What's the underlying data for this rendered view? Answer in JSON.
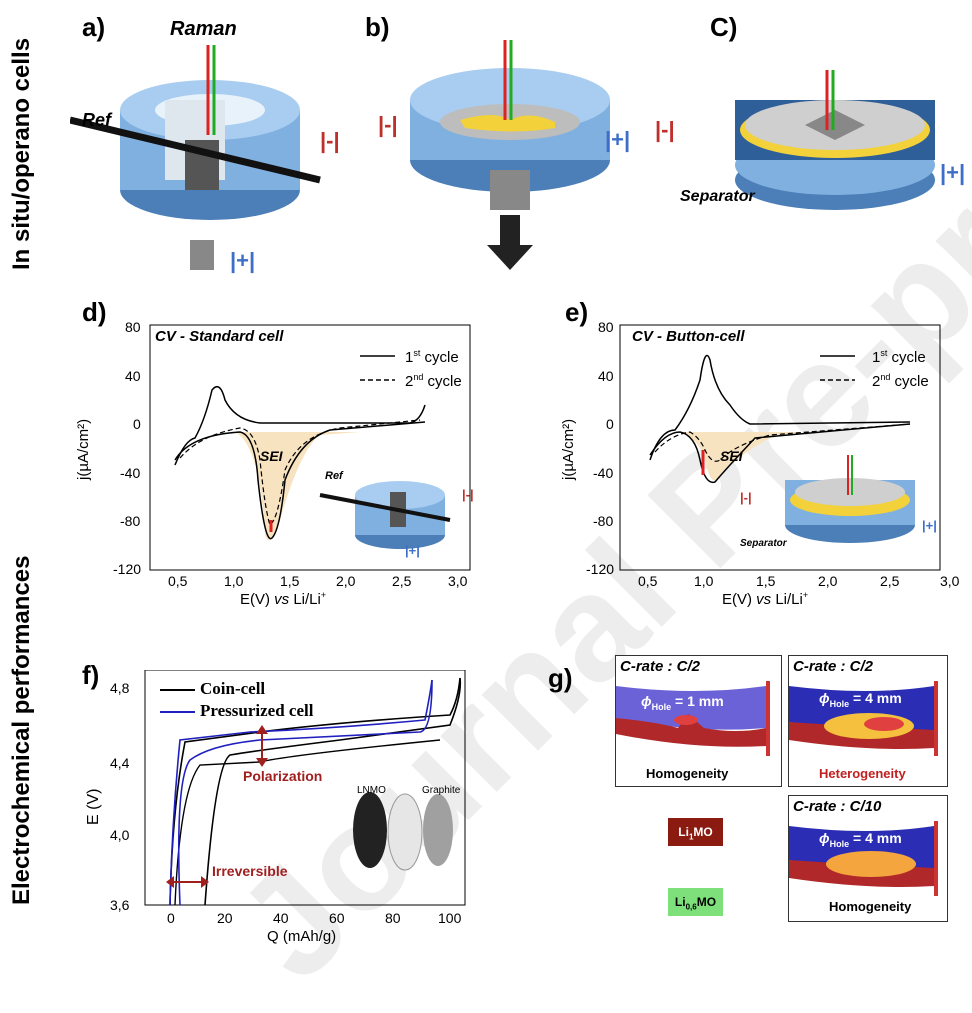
{
  "row_labels": {
    "top": "In situ/operano cells",
    "bottom": "Electrochemical performances"
  },
  "panels": {
    "a": {
      "label": "a)",
      "raman": "Raman",
      "ref": "Ref",
      "neg": "|-|",
      "pos": "|+|"
    },
    "b": {
      "label": "b)",
      "neg": "|-|",
      "pos": "|+|"
    },
    "c": {
      "label": "C)",
      "neg": "|-|",
      "pos": "|+|",
      "separator": "Separator"
    },
    "d": {
      "label": "d)",
      "title": "CV - Standard cell",
      "legend1": "1st cycle",
      "legend2": "2nd cycle",
      "legend1_base": "1",
      "legend1_sup": "st",
      "legend1_rest": " cycle",
      "legend2_base": "2",
      "legend2_sup": "nd",
      "legend2_rest": " cycle",
      "sei": "SEI",
      "inset_ref": "Ref",
      "inset_neg": "|-|",
      "inset_pos": "|+|"
    },
    "e": {
      "label": "e)",
      "title": "CV - Button-cell",
      "sei": "SEI",
      "inset_neg": "|-|",
      "inset_pos": "|+|",
      "inset_separator": "Separator"
    },
    "f": {
      "label": "f)",
      "legend1": "Coin-cell",
      "legend2": "Pressurized cell",
      "polarization": "Polarization",
      "irreversible": "Irreversible",
      "lnmo": "LNMO",
      "graphite": "Graphite",
      "xlabel": "Q (mAh/g)",
      "ylabel": "E (V)"
    },
    "g": {
      "label": "g)",
      "box1": {
        "title": "C-rate : C/2",
        "hole": "= 1 mm",
        "note": "Homogeneity"
      },
      "box2": {
        "title": "C-rate : C/2",
        "hole": "= 4 mm",
        "note": "Heterogeneity"
      },
      "box3": {
        "title": "C-rate : C/10",
        "hole": "= 4 mm",
        "note": "Homogeneity"
      },
      "phi": "ϕ",
      "phi_sub": "Hole",
      "legend_li1": "Li",
      "legend_li1_sub": "1",
      "legend_li1_rest": "MO",
      "legend_li06": "Li",
      "legend_li06_sub": "0,6",
      "legend_li06_rest": "MO"
    }
  },
  "cv_axes": {
    "ylabel": "j(µA/cm²)",
    "xlabel_pre": "E(V) ",
    "xlabel_vs": "vs",
    "xlabel_post": " Li/Li",
    "xlabel_sup": "+",
    "yticks": [
      "80",
      "40",
      "0",
      "-40",
      "-80",
      "-120"
    ],
    "xticks": [
      "0,5",
      "1,0",
      "1,5",
      "2,0",
      "2,5",
      "3,0"
    ]
  },
  "f_axes": {
    "yticks": [
      "4,8",
      "4,4",
      "4,0",
      "3,6"
    ],
    "xticks": [
      "0",
      "20",
      "40",
      "60",
      "80",
      "100"
    ]
  },
  "watermark": "Journal Pre-proof",
  "colors": {
    "cell_blue": "#7fb0e0",
    "cell_dark": "#4c7fb8",
    "accent_red": "#c0302b",
    "accent_blue": "#3d6ec9",
    "sei_fill": "#f8e3c0",
    "coin_cell": "#000000",
    "pressurized_cell": "#2020c0",
    "li1mo": "#8b1a10",
    "li06mo": "#7ee07a"
  }
}
